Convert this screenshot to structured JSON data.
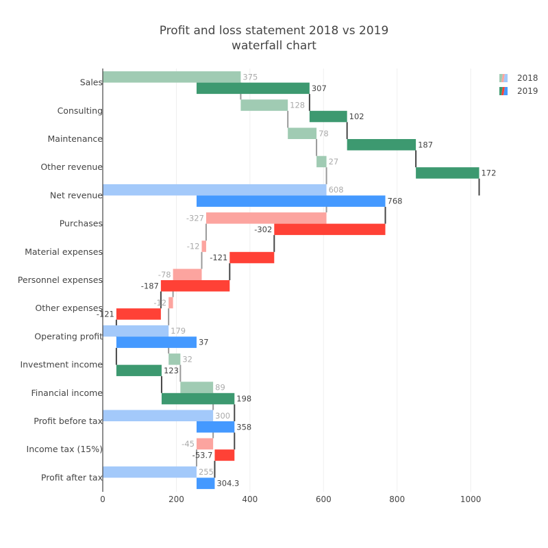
{
  "chart_data": {
    "type": "waterfall",
    "orientation": "horizontal",
    "title": "Profit and loss statement 2018 vs 2019",
    "subtitle": "waterfall chart",
    "categories": [
      "Sales",
      "Consulting",
      "Maintenance",
      "Other revenue",
      "Net revenue",
      "Purchases",
      "Material expenses",
      "Personnel expenses",
      "Other expenses",
      "Operating profit",
      "Investment income",
      "Financial income",
      "Profit before tax",
      "Income tax (15%)",
      "Profit after tax"
    ],
    "xlim": [
      0,
      1050
    ],
    "xticks": [
      0,
      200,
      400,
      600,
      800,
      1000
    ],
    "grid": true,
    "legend_position": "top-right",
    "colors": {
      "increase_2018": "#a0cbb3",
      "decrease_2018": "#fca49f",
      "total_2018": "#a3c9fa",
      "increase_2019": "#3d9970",
      "decrease_2019": "#ff4136",
      "total_2019": "#4499ff",
      "connector": "#444444",
      "label_2018": "#aaaaaa",
      "label_2019": "#444444"
    },
    "series": [
      {
        "name": "2018",
        "measure": [
          "relative",
          "relative",
          "relative",
          "relative",
          "total",
          "relative",
          "relative",
          "relative",
          "relative",
          "total",
          "relative",
          "relative",
          "total",
          "relative",
          "total"
        ],
        "values": [
          375,
          128,
          78,
          27,
          608,
          -327,
          -12,
          -78,
          -12,
          179,
          32,
          89,
          300,
          -45,
          255
        ],
        "text": [
          "375",
          "128",
          "78",
          "27",
          "608",
          "-327",
          "-12",
          "-78",
          "-12",
          "179",
          "32",
          "89",
          "300",
          "-45",
          "255"
        ],
        "base": 0
      },
      {
        "name": "2019",
        "measure": [
          "relative",
          "relative",
          "relative",
          "relative",
          "total",
          "relative",
          "relative",
          "relative",
          "relative",
          "total",
          "relative",
          "relative",
          "total",
          "relative",
          "total"
        ],
        "values": [
          307,
          102,
          187,
          172,
          768,
          -302,
          -121,
          -187,
          -121,
          37,
          123,
          198,
          358,
          -53.7,
          304.3
        ],
        "text": [
          "307",
          "102",
          "187",
          "172",
          "768",
          "-302",
          "-121",
          "-187",
          "-121",
          "37",
          "123",
          "198",
          "358",
          "-53.7",
          "304.3"
        ],
        "base": 255
      }
    ]
  }
}
